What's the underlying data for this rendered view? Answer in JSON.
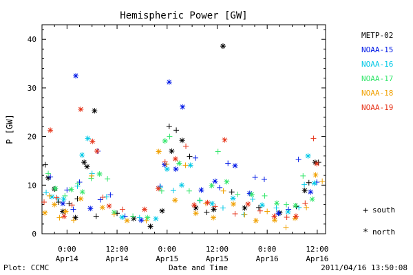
{
  "chart_data": {
    "type": "scatter",
    "title": "Hemispheric Power [GW]",
    "ylabel": "P [GW]",
    "xlabel": "Date and Time",
    "ylim": [
      0,
      43
    ],
    "xlim_hours": [
      -6,
      62
    ],
    "yticks": [
      0,
      10,
      20,
      30,
      40
    ],
    "xticks": [
      {
        "hours": 0,
        "line1": "0:00",
        "line2": "Apr14"
      },
      {
        "hours": 12,
        "line1": "12:00",
        "line2": "Apr14"
      },
      {
        "hours": 24,
        "line1": "0:00",
        "line2": "Apr15"
      },
      {
        "hours": 36,
        "line1": "12:00",
        "line2": "Apr15"
      },
      {
        "hours": 48,
        "line1": "0:00",
        "line2": "Apr16"
      },
      {
        "hours": 60,
        "line1": "12:00",
        "line2": "Apr16"
      }
    ],
    "x_units": "hours after 2011-04-14 00:00 UT",
    "grid": false,
    "legend_position": "right",
    "symbol_legend": {
      "south": "south",
      "north": "north",
      "south_symbol": "+",
      "north_symbol": "*"
    },
    "series": [
      {
        "name": "METP-02",
        "color": "#000000",
        "points": [
          [
            -5.2,
            14.2,
            "+"
          ],
          [
            -4.5,
            11.5,
            "*"
          ],
          [
            -3,
            9.2,
            "*"
          ],
          [
            -2,
            6.5,
            "+"
          ],
          [
            -1,
            4.6,
            "*"
          ],
          [
            0.5,
            6.2,
            "+"
          ],
          [
            2,
            3.3,
            "*"
          ],
          [
            2.5,
            7.2,
            "+"
          ],
          [
            4.1,
            14.7,
            "*"
          ],
          [
            4.8,
            13.8,
            "*"
          ],
          [
            6.6,
            25.3,
            "*"
          ],
          [
            7,
            3.6,
            "+"
          ],
          [
            12,
            4.2,
            "+"
          ],
          [
            16,
            3.1,
            "*"
          ],
          [
            20,
            1.5,
            "*"
          ],
          [
            22.8,
            4.7,
            "*"
          ],
          [
            24.5,
            22.1,
            "+"
          ],
          [
            25.1,
            17,
            "*"
          ],
          [
            26.2,
            21.3,
            "+"
          ],
          [
            27.6,
            19.2,
            "*"
          ],
          [
            29.4,
            15.9,
            "+"
          ],
          [
            30.9,
            5.3,
            "*"
          ],
          [
            33.5,
            4.4,
            "+"
          ],
          [
            35.2,
            5,
            "*"
          ],
          [
            37.4,
            38.6,
            "*"
          ],
          [
            39.5,
            8.6,
            "+"
          ],
          [
            42.6,
            5.3,
            "*"
          ],
          [
            46,
            5.4,
            "+"
          ],
          [
            51,
            4.3,
            "*"
          ],
          [
            55,
            5.6,
            "+"
          ],
          [
            57,
            8.9,
            "*"
          ],
          [
            58,
            10.5,
            "+"
          ],
          [
            59.5,
            14.7,
            "*"
          ],
          [
            60.3,
            14.7,
            "+"
          ]
        ]
      },
      {
        "name": "NOAA-15",
        "color": "#0019E6",
        "points": [
          [
            -4,
            11.7,
            "+"
          ],
          [
            -1,
            6.2,
            "*"
          ],
          [
            0,
            9,
            "+"
          ],
          [
            1.5,
            5,
            "+"
          ],
          [
            2.1,
            32.5,
            "*"
          ],
          [
            3,
            10.6,
            "+"
          ],
          [
            5.6,
            5.2,
            "*"
          ],
          [
            7.4,
            17,
            "+"
          ],
          [
            8,
            7,
            "+"
          ],
          [
            10.4,
            8,
            "+"
          ],
          [
            13.9,
            3.6,
            "+"
          ],
          [
            17.8,
            2.8,
            "*"
          ],
          [
            22.3,
            9.8,
            "+"
          ],
          [
            23.4,
            14.2,
            "*"
          ],
          [
            24.5,
            31.2,
            "*"
          ],
          [
            26.1,
            13.3,
            "*"
          ],
          [
            27.7,
            26.1,
            "*"
          ],
          [
            30.8,
            15.6,
            "+"
          ],
          [
            32.2,
            9,
            "*"
          ],
          [
            35.5,
            10.8,
            "*"
          ],
          [
            36.6,
            9.5,
            "+"
          ],
          [
            38.6,
            14.5,
            "+"
          ],
          [
            40.3,
            14,
            "*"
          ],
          [
            43.8,
            8.3,
            "*"
          ],
          [
            45.1,
            11.6,
            "+"
          ],
          [
            47.3,
            11.2,
            "+"
          ],
          [
            50.7,
            4.2,
            "*"
          ],
          [
            53.1,
            5,
            "+"
          ],
          [
            55.5,
            15.3,
            "+"
          ],
          [
            58.4,
            8.6,
            "*"
          ],
          [
            59.9,
            10.6,
            "+"
          ]
        ]
      },
      {
        "name": "NOAA-16",
        "color": "#00C8E6",
        "points": [
          [
            -5,
            8.5,
            "+"
          ],
          [
            -3.6,
            7.6,
            "*"
          ],
          [
            -2.2,
            7.2,
            "+"
          ],
          [
            -0.8,
            7.1,
            "*"
          ],
          [
            2.5,
            9.8,
            "+"
          ],
          [
            3.6,
            16.2,
            "*"
          ],
          [
            5,
            19.6,
            "*"
          ],
          [
            6,
            12.4,
            "+"
          ],
          [
            9.5,
            7.6,
            "+"
          ],
          [
            13.2,
            3.4,
            "*"
          ],
          [
            17.4,
            3.3,
            "+"
          ],
          [
            21.3,
            3.1,
            "*"
          ],
          [
            22.4,
            9.6,
            "+"
          ],
          [
            24,
            13.3,
            "*"
          ],
          [
            25.5,
            8.9,
            "+"
          ],
          [
            27.5,
            10,
            "*"
          ],
          [
            29.6,
            14.1,
            "*"
          ],
          [
            31.9,
            6.8,
            "+"
          ],
          [
            34.8,
            6.2,
            "*"
          ],
          [
            37.4,
            5.3,
            "+"
          ],
          [
            39.8,
            7.3,
            "*"
          ],
          [
            42.4,
            4,
            "+"
          ],
          [
            44.5,
            7.1,
            "+"
          ],
          [
            46.8,
            5.9,
            "*"
          ],
          [
            50.2,
            5.3,
            "+"
          ],
          [
            53,
            4.5,
            "*"
          ],
          [
            55.6,
            5.4,
            "+"
          ],
          [
            56.9,
            10.1,
            "+"
          ],
          [
            57.8,
            16,
            "*"
          ],
          [
            59.3,
            10.4,
            "*"
          ]
        ]
      },
      {
        "name": "NOAA-17",
        "color": "#33E66B",
        "points": [
          [
            -4.5,
            12.4,
            "+"
          ],
          [
            -2.8,
            9.3,
            "*"
          ],
          [
            -0.5,
            7.8,
            "+"
          ],
          [
            1,
            9.1,
            "*"
          ],
          [
            2.6,
            10.3,
            "+"
          ],
          [
            3.7,
            8.6,
            "*"
          ],
          [
            5.8,
            11.4,
            "+"
          ],
          [
            7.8,
            12.3,
            "*"
          ],
          [
            9.7,
            11.3,
            "+"
          ],
          [
            11.3,
            4.4,
            "*"
          ],
          [
            15.8,
            3.6,
            "+"
          ],
          [
            19.3,
            3.3,
            "*"
          ],
          [
            22.7,
            8.8,
            "+"
          ],
          [
            23.5,
            19.1,
            "*"
          ],
          [
            24.6,
            20,
            "+"
          ],
          [
            26.9,
            14.5,
            "*"
          ],
          [
            29.3,
            8.8,
            "+"
          ],
          [
            31.8,
            6.9,
            "+"
          ],
          [
            34.7,
            9.9,
            "*"
          ],
          [
            36.2,
            16.9,
            "+"
          ],
          [
            38.3,
            10.7,
            "*"
          ],
          [
            40.9,
            8.1,
            "+"
          ],
          [
            44.3,
            8.1,
            "*"
          ],
          [
            47.4,
            7.8,
            "+"
          ],
          [
            50.3,
            6.3,
            "*"
          ],
          [
            52.6,
            6,
            "+"
          ],
          [
            54.8,
            5.8,
            "*"
          ],
          [
            56.6,
            11.9,
            "+"
          ],
          [
            58.8,
            7.1,
            "*"
          ]
        ]
      },
      {
        "name": "NOAA-18",
        "color": "#F0A000",
        "points": [
          [
            -5.3,
            4.3,
            "*"
          ],
          [
            -4.2,
            7.8,
            "+"
          ],
          [
            -3,
            6,
            "*"
          ],
          [
            -1.8,
            3.3,
            "+"
          ],
          [
            -0.3,
            4.6,
            "*"
          ],
          [
            1.6,
            2.8,
            "+"
          ],
          [
            3.3,
            7.2,
            "*"
          ],
          [
            5.9,
            11.9,
            "+"
          ],
          [
            8.5,
            5.4,
            "*"
          ],
          [
            11.3,
            4,
            "+"
          ],
          [
            14.4,
            2.7,
            "*"
          ],
          [
            19,
            2.7,
            "+"
          ],
          [
            22,
            16.9,
            "*"
          ],
          [
            23.9,
            14.3,
            "+"
          ],
          [
            25.9,
            6.9,
            "*"
          ],
          [
            28.4,
            14.1,
            "+"
          ],
          [
            30.9,
            4.2,
            "*"
          ],
          [
            33.3,
            6.2,
            "+"
          ],
          [
            35.1,
            3.3,
            "*"
          ],
          [
            37.5,
            8.8,
            "+"
          ],
          [
            39.9,
            6.1,
            "*"
          ],
          [
            42.6,
            3.9,
            "+"
          ],
          [
            45.3,
            2.7,
            "*"
          ],
          [
            48,
            4.6,
            "+"
          ],
          [
            49.8,
            2.8,
            "*"
          ],
          [
            52.5,
            1.3,
            "+"
          ],
          [
            54.7,
            3.2,
            "*"
          ],
          [
            57.4,
            5.4,
            "+"
          ],
          [
            59.6,
            12.1,
            "*"
          ],
          [
            61.2,
            10.8,
            "+"
          ]
        ]
      },
      {
        "name": "NOAA-19",
        "color": "#E63319",
        "points": [
          [
            -5.5,
            6.5,
            "+"
          ],
          [
            -4,
            21.3,
            "*"
          ],
          [
            -2.5,
            7.4,
            "+"
          ],
          [
            -0.7,
            3.6,
            "*"
          ],
          [
            1.2,
            5.9,
            "+"
          ],
          [
            3.3,
            25.6,
            "*"
          ],
          [
            6.1,
            19,
            "*"
          ],
          [
            7.2,
            17,
            "*"
          ],
          [
            8.6,
            7.5,
            "+"
          ],
          [
            10.1,
            5.7,
            "*"
          ],
          [
            13.3,
            5,
            "+"
          ],
          [
            18.6,
            5,
            "*"
          ],
          [
            21.9,
            9.3,
            "*"
          ],
          [
            23.5,
            14.8,
            "+"
          ],
          [
            26,
            15.4,
            "*"
          ],
          [
            28.5,
            18,
            "+"
          ],
          [
            30.5,
            5.9,
            "*"
          ],
          [
            33.7,
            6.4,
            "*"
          ],
          [
            35.5,
            5.6,
            "+"
          ],
          [
            37.8,
            19.3,
            "*"
          ],
          [
            40.3,
            4.1,
            "+"
          ],
          [
            43.4,
            6.1,
            "*"
          ],
          [
            46.3,
            4.7,
            "+"
          ],
          [
            49.7,
            3.6,
            "*"
          ],
          [
            52.7,
            3.4,
            "+"
          ],
          [
            54.9,
            3.6,
            "*"
          ],
          [
            57.1,
            6.3,
            "+"
          ],
          [
            59.1,
            19.6,
            "+"
          ],
          [
            59.9,
            14.4,
            "*"
          ]
        ]
      }
    ]
  },
  "footer": {
    "plot_credit": "Plot: CCMC",
    "timestamp": "2011/04/16 13:50:08"
  }
}
